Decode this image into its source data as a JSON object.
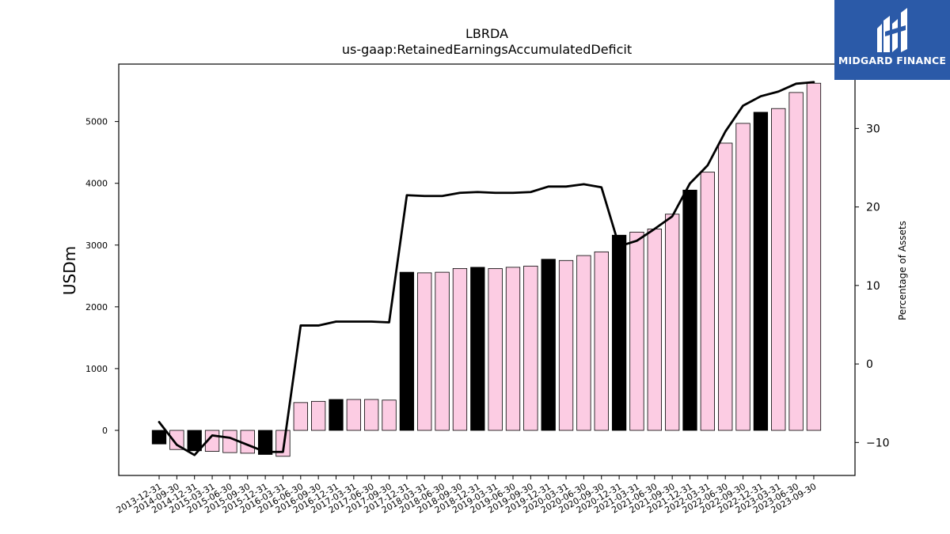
{
  "brand": {
    "name": "MIDGARD FINANCE",
    "background_color": "#2b5aa8"
  },
  "chart_data": {
    "type": "bar",
    "title": "LBRDA",
    "subtitle": "us-gaap:RetainedEarningsAccumulatedDeficit",
    "ylabel": "USDm",
    "y2label": "Percentage of Assets",
    "ylim": [
      -730,
      5930
    ],
    "y2lim": [
      -14.2,
      38.2
    ],
    "yticks": [
      0,
      1000,
      2000,
      3000,
      4000,
      5000
    ],
    "y2ticks": [
      -10,
      0,
      10,
      20,
      30
    ],
    "grid": false,
    "colors": {
      "highlight": "#000000",
      "normal": "#fccce3",
      "edge": "#000000",
      "line": "#000000"
    },
    "categories": [
      "2013-12-31",
      "2014-09-30",
      "2014-12-31",
      "2015-03-31",
      "2015-06-30",
      "2015-09-30",
      "2015-12-31",
      "2016-03-31",
      "2016-06-30",
      "2016-09-30",
      "2016-12-31",
      "2017-03-31",
      "2017-06-30",
      "2017-09-30",
      "2017-12-31",
      "2018-03-31",
      "2018-06-30",
      "2018-09-30",
      "2018-12-31",
      "2019-03-31",
      "2019-06-30",
      "2019-09-30",
      "2019-12-31",
      "2020-03-31",
      "2020-06-30",
      "2020-09-30",
      "2020-12-31",
      "2021-03-31",
      "2021-06-30",
      "2021-09-30",
      "2021-12-31",
      "2022-03-31",
      "2022-06-30",
      "2022-09-30",
      "2022-12-31",
      "2023-03-31",
      "2023-06-30",
      "2023-09-30"
    ],
    "series": [
      {
        "kind": "bar",
        "values": [
          -220,
          -310,
          -330,
          -340,
          -360,
          -370,
          -390,
          -420,
          450,
          470,
          500,
          500,
          500,
          490,
          2560,
          2550,
          2560,
          2620,
          2640,
          2620,
          2640,
          2660,
          2770,
          2750,
          2830,
          2890,
          3160,
          3210,
          3260,
          3500,
          3890,
          4180,
          4650,
          4970,
          5150,
          5210,
          5470,
          5620
        ],
        "highlight": [
          true,
          false,
          true,
          false,
          false,
          false,
          true,
          false,
          false,
          false,
          true,
          false,
          false,
          false,
          true,
          false,
          false,
          false,
          true,
          false,
          false,
          false,
          true,
          false,
          false,
          false,
          true,
          false,
          false,
          false,
          true,
          false,
          false,
          false,
          true,
          false,
          false,
          false
        ]
      },
      {
        "kind": "line",
        "axis": "right",
        "values": [
          -7.4,
          -10.3,
          -11.6,
          -9.1,
          -9.4,
          -10.3,
          -11.2,
          -11.2,
          4.9,
          4.9,
          5.4,
          5.4,
          5.4,
          5.3,
          21.5,
          21.4,
          21.4,
          21.8,
          21.9,
          21.8,
          21.8,
          21.9,
          22.6,
          22.6,
          22.9,
          22.5,
          15.0,
          15.7,
          17.2,
          18.8,
          23.0,
          25.3,
          29.6,
          32.9,
          34.1,
          34.7,
          35.7,
          35.9
        ]
      }
    ]
  }
}
